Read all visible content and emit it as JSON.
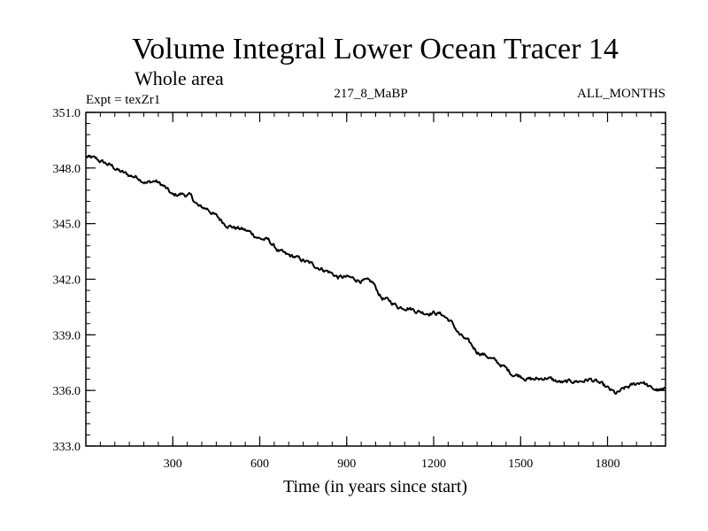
{
  "chart_data": {
    "type": "line",
    "title": "Volume Integral Lower Ocean Tracer 14",
    "subtitle": "Whole area",
    "expt_label": "Expt = texZr1",
    "center_label": "217_8_MaBP",
    "right_label": "ALL_MONTHS",
    "xlabel": "Time (in years since start)",
    "ylabel": "",
    "xlim": [
      0,
      2000
    ],
    "ylim": [
      333.0,
      351.0
    ],
    "x_ticks": [
      300,
      600,
      900,
      1200,
      1500,
      1800
    ],
    "x_tick_labels": [
      "300",
      "600",
      "900",
      "1200",
      "1500",
      "1800"
    ],
    "y_ticks": [
      333.0,
      336.0,
      339.0,
      342.0,
      345.0,
      348.0,
      351.0
    ],
    "y_tick_labels": [
      "333.0",
      "336.0",
      "339.0",
      "342.0",
      "345.0",
      "348.0",
      "351.0"
    ],
    "x_minor_step": 50,
    "y_minor_step": 0.6,
    "series": [
      {
        "name": "Lower Ocean Tracer 14",
        "x": [
          0,
          30,
          60,
          90,
          120,
          150,
          180,
          210,
          240,
          270,
          300,
          330,
          360,
          390,
          420,
          450,
          480,
          510,
          540,
          570,
          600,
          630,
          660,
          690,
          720,
          750,
          780,
          810,
          840,
          870,
          900,
          930,
          960,
          990,
          1020,
          1050,
          1080,
          1110,
          1140,
          1170,
          1200,
          1230,
          1260,
          1290,
          1320,
          1350,
          1380,
          1410,
          1440,
          1470,
          1500,
          1530,
          1560,
          1590,
          1620,
          1650,
          1680,
          1710,
          1740,
          1770,
          1800,
          1830,
          1860,
          1890,
          1920,
          1950,
          1980,
          2000
        ],
        "values": [
          348.6,
          348.5,
          348.3,
          348.1,
          347.8,
          347.6,
          347.5,
          347.2,
          347.3,
          347.0,
          346.5,
          346.6,
          346.5,
          345.9,
          345.8,
          345.4,
          345.0,
          344.8,
          344.7,
          344.5,
          344.2,
          344.1,
          343.6,
          343.3,
          343.2,
          343.0,
          342.8,
          342.6,
          342.4,
          342.1,
          342.1,
          342.0,
          341.9,
          341.8,
          341.0,
          340.8,
          340.5,
          340.5,
          340.3,
          340.2,
          340.2,
          340.1,
          339.7,
          339.0,
          338.6,
          338.1,
          337.9,
          337.6,
          337.3,
          336.9,
          336.8,
          336.6,
          336.6,
          336.7,
          336.5,
          336.4,
          336.5,
          336.5,
          336.6,
          336.4,
          336.1,
          335.8,
          336.1,
          336.3,
          336.5,
          336.1,
          336.0,
          336.0
        ]
      }
    ],
    "grid": false,
    "legend": "none"
  }
}
